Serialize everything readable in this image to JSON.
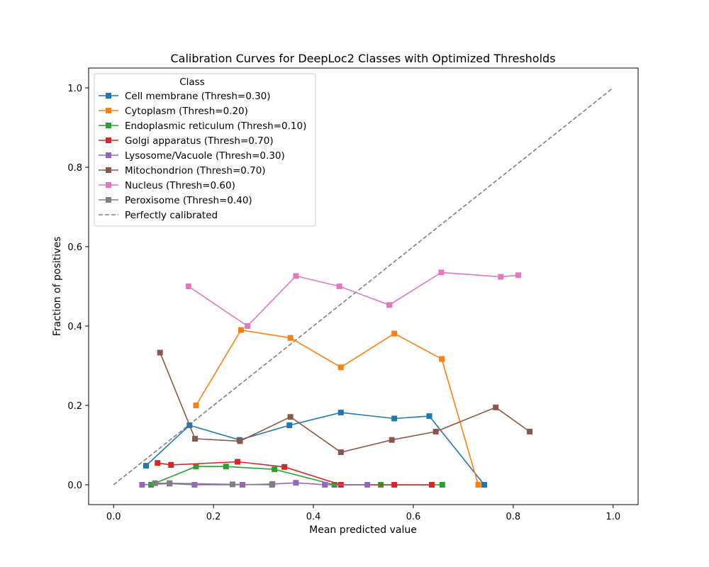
{
  "chart_data": {
    "type": "line",
    "title": "Calibration Curves for DeepLoc2 Classes with Optimized Thresholds",
    "xlabel": "Mean predicted value",
    "ylabel": "Fraction of positives",
    "xlim": [
      -0.05,
      1.05
    ],
    "ylim": [
      -0.05,
      1.05
    ],
    "xticks": [
      0.0,
      0.2,
      0.4,
      0.6,
      0.8,
      1.0
    ],
    "yticks": [
      0.0,
      0.2,
      0.4,
      0.6,
      0.8,
      1.0
    ],
    "xtick_labels": [
      "0.0",
      "0.2",
      "0.4",
      "0.6",
      "0.8",
      "1.0"
    ],
    "ytick_labels": [
      "0.0",
      "0.2",
      "0.4",
      "0.6",
      "0.8",
      "1.0"
    ],
    "grid": false,
    "legend": {
      "title": "Class",
      "position": "upper-left"
    },
    "series": [
      {
        "name": "Cell membrane (Thresh=0.30)",
        "color": "#1f77b4",
        "x": [
          0.065,
          0.152,
          0.252,
          0.352,
          0.455,
          0.562,
          0.632,
          0.742
        ],
        "y": [
          0.048,
          0.15,
          0.113,
          0.15,
          0.182,
          0.167,
          0.173,
          0.0
        ]
      },
      {
        "name": "Cytoplasm (Thresh=0.20)",
        "color": "#ff7f0e",
        "x": [
          0.165,
          0.255,
          0.354,
          0.455,
          0.562,
          0.657,
          0.73
        ],
        "y": [
          0.2,
          0.39,
          0.37,
          0.296,
          0.381,
          0.317,
          0.0
        ]
      },
      {
        "name": "Endoplasmic reticulum (Thresh=0.10)",
        "color": "#2ca02c",
        "x": [
          0.075,
          0.165,
          0.225,
          0.322,
          0.442,
          0.535,
          0.658
        ],
        "y": [
          0.0,
          0.046,
          0.046,
          0.039,
          0.0,
          0.0,
          0.0
        ]
      },
      {
        "name": "Golgi apparatus (Thresh=0.70)",
        "color": "#d62728",
        "x": [
          0.088,
          0.115,
          0.248,
          0.342,
          0.455,
          0.562,
          0.637
        ],
        "y": [
          0.055,
          0.05,
          0.058,
          0.045,
          0.0,
          0.0,
          0.0
        ]
      },
      {
        "name": "Lysosome/Vacuole (Thresh=0.30)",
        "color": "#9467bd",
        "x": [
          0.057,
          0.112,
          0.162,
          0.258,
          0.318,
          0.365,
          0.423,
          0.508
        ],
        "y": [
          0.0,
          0.003,
          0.0,
          0.0,
          0.002,
          0.005,
          0.0,
          0.0
        ]
      },
      {
        "name": "Mitochondrion (Thresh=0.70)",
        "color": "#8c564b",
        "x": [
          0.093,
          0.163,
          0.253,
          0.354,
          0.455,
          0.557,
          0.645,
          0.765,
          0.833
        ],
        "y": [
          0.333,
          0.116,
          0.11,
          0.171,
          0.082,
          0.113,
          0.134,
          0.195,
          0.134
        ]
      },
      {
        "name": "Nucleus (Thresh=0.60)",
        "color": "#e377c2",
        "x": [
          0.15,
          0.268,
          0.365,
          0.452,
          0.552,
          0.656,
          0.775,
          0.81
        ],
        "y": [
          0.5,
          0.4,
          0.526,
          0.5,
          0.453,
          0.535,
          0.524,
          0.528
        ]
      },
      {
        "name": "Peroxisome (Thresh=0.40)",
        "color": "#7f7f7f",
        "x": [
          0.083,
          0.112,
          0.238,
          0.317
        ],
        "y": [
          0.004,
          0.004,
          0.001,
          0.0
        ]
      }
    ],
    "reference_line": {
      "name": "Perfectly calibrated",
      "color": "#808080",
      "x": [
        0.0,
        1.0
      ],
      "y": [
        0.0,
        1.0
      ]
    }
  }
}
